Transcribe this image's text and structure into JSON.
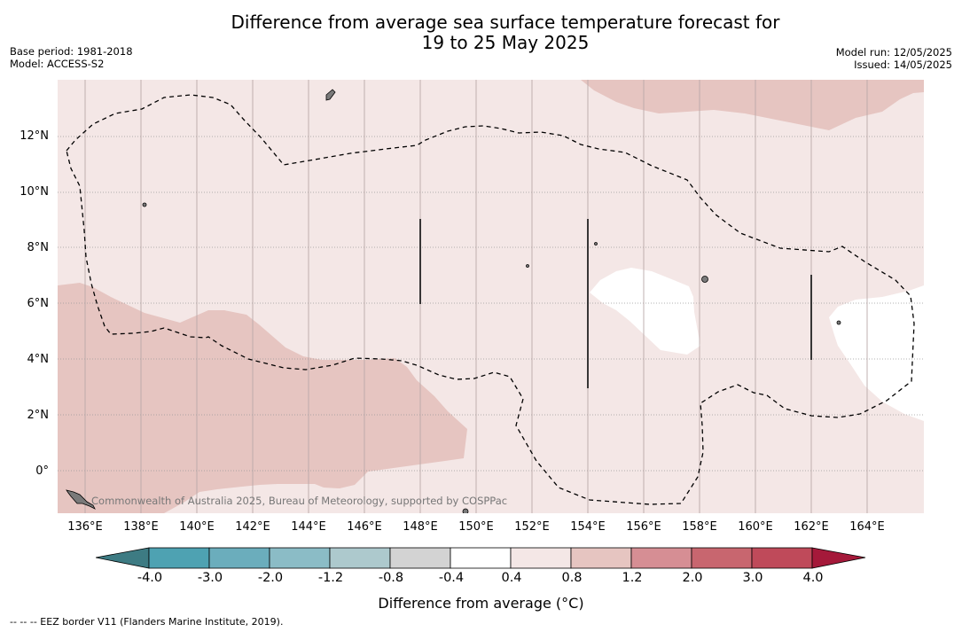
{
  "header": {
    "title_line1": "Difference from average sea surface temperature forecast for",
    "title_line2": "19 to 25 May 2025",
    "base_period": "Base period: 1981-2018",
    "model": "Model: ACCESS-S2",
    "model_run": "Model run: 12/05/2025",
    "issued": "Issued: 14/05/2025"
  },
  "map": {
    "lat_labels": [
      "12°N",
      "10°N",
      "8°N",
      "6°N",
      "4°N",
      "2°N",
      "0°"
    ],
    "lon_labels": [
      "136°E",
      "138°E",
      "140°E",
      "142°E",
      "144°E",
      "146°E",
      "148°E",
      "150°E",
      "152°E",
      "154°E",
      "156°E",
      "158°E",
      "160°E",
      "162°E",
      "164°E"
    ],
    "credit": "Commonwealth of Australia 2025, Bureau of Meteorology, supported by COSPPac",
    "background_color": "#f4e7e6",
    "warm_color": "#e6c5c1",
    "neutral_color": "#ffffff"
  },
  "colorbar": {
    "labels": [
      "-4.0",
      "-3.0",
      "-2.0",
      "-1.2",
      "-0.8",
      "-0.4",
      "0.4",
      "0.8",
      "1.2",
      "2.0",
      "3.0",
      "4.0"
    ],
    "colors": [
      "#4ea2b2",
      "#6badbc",
      "#8bbcc6",
      "#adc9cd",
      "#d3d3d3",
      "#ffffff",
      "#f4e7e6",
      "#e6c5c1",
      "#d68e94",
      "#c8666f",
      "#bf4a5a"
    ],
    "extend_low_color": "#3d7b83",
    "extend_high_color": "#a5193a",
    "title": "Difference from average (°C)"
  },
  "footnote": "-- -- -- EEZ border V11 (Flanders Marine Institute, 2019)."
}
